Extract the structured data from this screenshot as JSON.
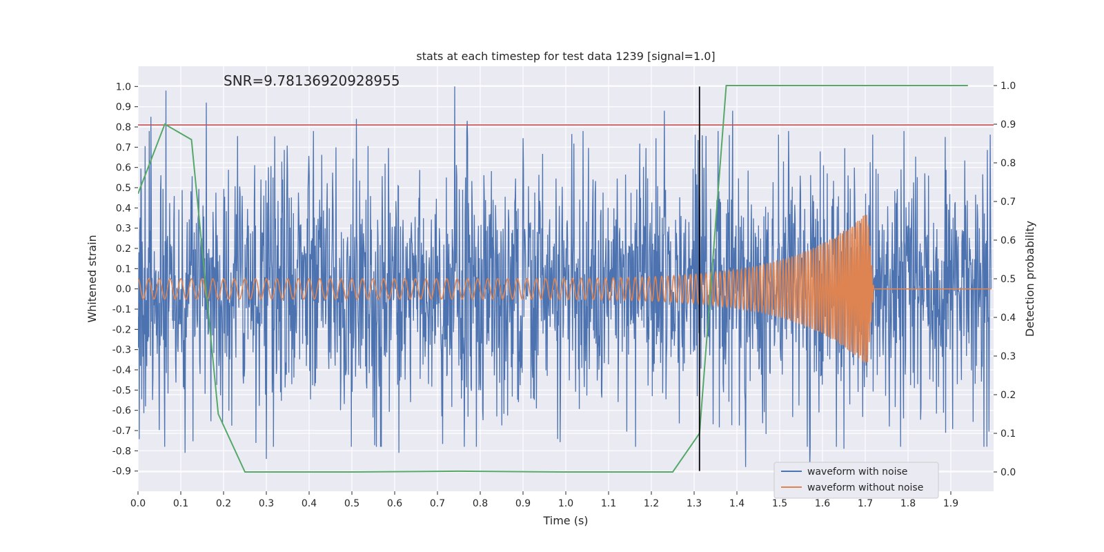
{
  "chart_data": {
    "type": "line",
    "title": "stats at each timestep for test data 1239 [signal=1.0]",
    "xlabel": "Time (s)",
    "ylabel": "Whitened strain",
    "y2label": "Detection probability",
    "xlim": [
      0.0,
      2.0
    ],
    "ylim": [
      -1.0,
      1.1
    ],
    "y2lim": [
      -0.05,
      1.05
    ],
    "xticks": [
      "0.0",
      "0.1",
      "0.2",
      "0.3",
      "0.4",
      "0.5",
      "0.6",
      "0.7",
      "0.8",
      "0.9",
      "1.0",
      "1.1",
      "1.2",
      "1.3",
      "1.4",
      "1.5",
      "1.6",
      "1.7",
      "1.8",
      "1.9"
    ],
    "yticks": [
      "-0.9",
      "-0.8",
      "-0.7",
      "-0.6",
      "-0.5",
      "-0.4",
      "-0.3",
      "-0.2",
      "-0.1",
      "0.0",
      "0.1",
      "0.2",
      "0.3",
      "0.4",
      "0.5",
      "0.6",
      "0.7",
      "0.8",
      "0.9",
      "1.0"
    ],
    "y2ticks": [
      "0.0",
      "0.1",
      "0.2",
      "0.3",
      "0.4",
      "0.5",
      "0.6",
      "0.7",
      "0.8",
      "0.9",
      "1.0"
    ],
    "annotation": "SNR=9.78136920928955",
    "grid": true,
    "legend_position": "bottom-right",
    "colors": {
      "noisy": "#4c72b0",
      "clean": "#dd8452",
      "probability": "#55a868",
      "threshold": "#c44e52",
      "marker": "#000000",
      "background": "#eaeaf2"
    },
    "series": [
      {
        "name": "waveform with noise",
        "axis": "left",
        "kind": "noise",
        "amplitude": 0.3,
        "spikes": [
          {
            "x": 0.03,
            "y": 0.85
          },
          {
            "x": 0.065,
            "y": 0.98
          },
          {
            "x": 0.16,
            "y": 0.92
          },
          {
            "x": 0.74,
            "y": 1.0
          },
          {
            "x": 0.77,
            "y": 0.83
          },
          {
            "x": 0.51,
            "y": 0.84
          },
          {
            "x": 1.23,
            "y": 0.88
          },
          {
            "x": 1.39,
            "y": 0.88
          },
          {
            "x": 0.3,
            "y": -0.84
          },
          {
            "x": 0.11,
            "y": -0.81
          },
          {
            "x": 0.61,
            "y": -0.81
          },
          {
            "x": 1.42,
            "y": -0.88
          },
          {
            "x": 1.57,
            "y": -0.88
          },
          {
            "x": 1.65,
            "y": -0.79
          }
        ]
      },
      {
        "name": "waveform without noise",
        "axis": "left",
        "kind": "chirp",
        "start_frequency_hz": 40,
        "end_frequency_hz": 250,
        "start_amplitude": 0.05,
        "peak_amplitude": 0.38,
        "merger_time": 1.705,
        "ringdown_end": 1.72
      },
      {
        "name": "detection probability",
        "axis": "right",
        "kind": "line",
        "x": [
          0.0,
          0.0625,
          0.125,
          0.1875,
          0.25,
          0.5,
          0.75,
          1.0,
          1.25,
          1.3125,
          1.375,
          1.94
        ],
        "y": [
          0.72,
          0.9,
          0.86,
          0.15,
          0.0,
          0.0,
          0.002,
          0.0,
          0.0,
          0.1,
          1.0,
          1.0
        ]
      }
    ],
    "threshold_line": {
      "axis": "left",
      "y": 0.81
    },
    "vertical_marker": {
      "x": 1.3125,
      "y_from": -0.9,
      "y_to": 1.0
    }
  },
  "legend": [
    {
      "label": "waveform with noise",
      "color": "#4c72b0"
    },
    {
      "label": "waveform without noise",
      "color": "#dd8452"
    }
  ]
}
